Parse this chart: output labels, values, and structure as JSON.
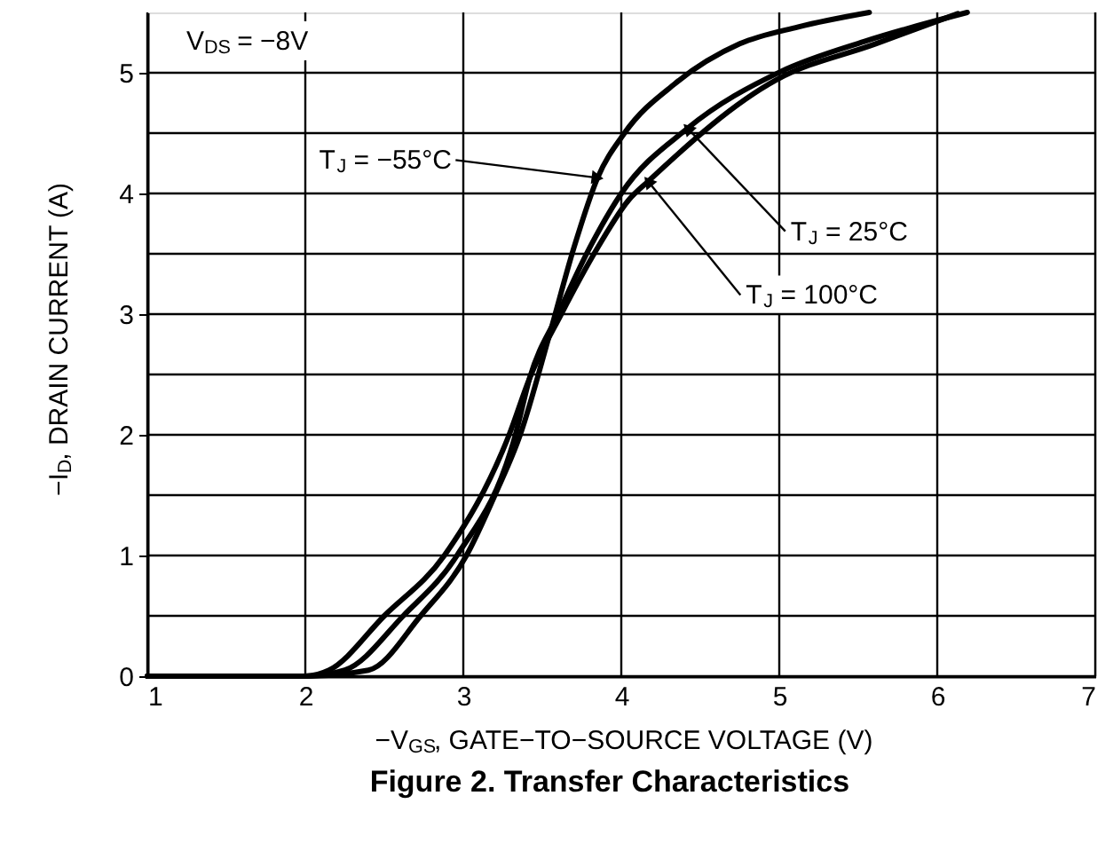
{
  "chart_data": {
    "type": "line",
    "title": "Figure 2. Transfer Characteristics",
    "xlabel": "−V$_{GS}$, GATE−TO−SOURCE VOLTAGE (V)",
    "ylabel": "−I$_{D}$, DRAIN CURRENT (A)",
    "xlim": [
      1,
      7
    ],
    "xticks": [
      1,
      2,
      3,
      4,
      5,
      6,
      7
    ],
    "ylim": [
      0,
      5.5
    ],
    "yticks": [
      0,
      {
        "value": 0.5,
        "label": null
      },
      1,
      {
        "value": 1.5,
        "label": null
      },
      2,
      {
        "value": 2.5,
        "label": null
      },
      3,
      {
        "value": 3.5,
        "label": null
      },
      4,
      {
        "value": 4.5,
        "label": null
      },
      5
    ],
    "grid": true,
    "line_style": "solid",
    "series": [
      {
        "color": "#000000",
        "x": [
          1,
          2,
          2.4,
          2.73,
          3.02,
          3.2,
          3.36,
          3.55,
          3.7,
          3.85,
          4.02,
          4.34,
          4.75,
          5.12,
          5.57
        ],
        "values": [
          0,
          0,
          0.05,
          0.5,
          1,
          1.5,
          2,
          2.85,
          3.55,
          4.13,
          4.5,
          4.91,
          5.24,
          5.38,
          5.5
        ]
      },
      {
        "color": "#000000",
        "x": [
          1,
          2,
          2.25,
          2.62,
          2.96,
          3.33,
          3.42,
          3.6,
          3.8,
          4.0,
          4.42,
          5.01,
          5.54,
          6.19
        ],
        "values": [
          0,
          0,
          0.05,
          0.5,
          1,
          2,
          2.47,
          3.0,
          3.55,
          4.0,
          4.54,
          5.01,
          5.26,
          5.5
        ]
      },
      {
        "color": "#000000",
        "x": [
          1,
          2,
          2.15,
          2.5,
          2.88,
          3.29,
          3.42,
          3.62,
          3.85,
          4.05,
          4.17,
          4.98,
          5.61,
          6.13
        ],
        "values": [
          0,
          0,
          0.05,
          0.5,
          1,
          2,
          2.47,
          3.0,
          3.55,
          3.95,
          4.1,
          4.94,
          5.24,
          5.49
        ]
      }
    ],
    "annotations": [
      "V$_{DS}$ = −8V",
      {
        "text": "T$_{J}$ = −55°C",
        "x": 3.85,
        "y": 4.13
      },
      {
        "text": "T$_{J}$ = 25°C",
        "x": 4.42,
        "y": 4.54
      },
      {
        "text": "T$_{J}$ = 100°C",
        "x": 4.17,
        "y": 4.1
      }
    ]
  }
}
